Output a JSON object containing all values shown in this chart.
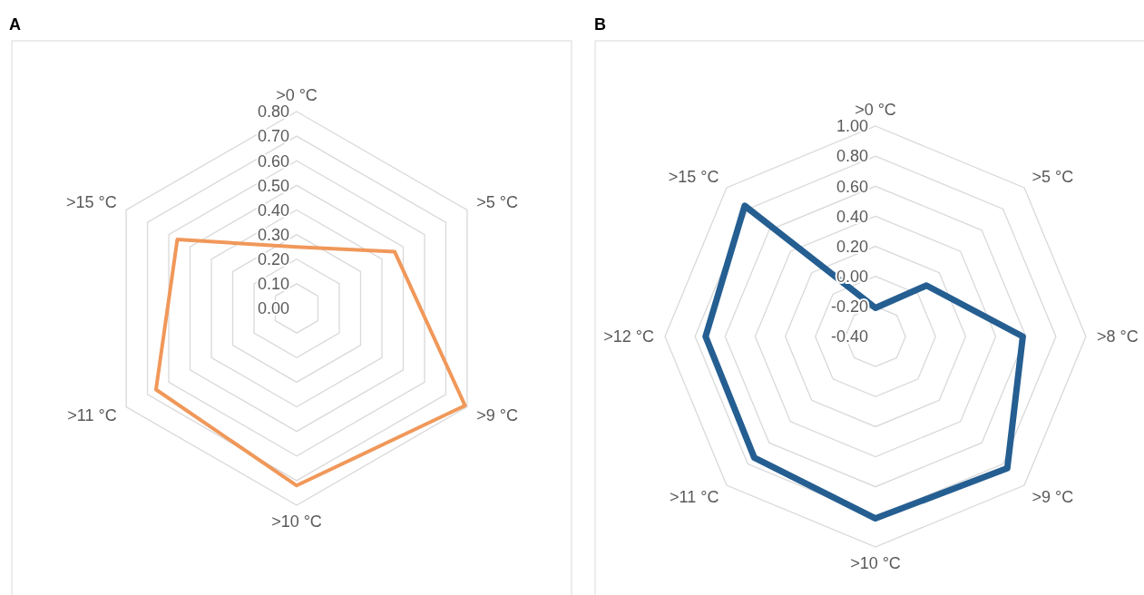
{
  "chart_data": [
    {
      "type": "radar",
      "title": "A",
      "categories": [
        ">0 °C",
        ">5 °C",
        ">9 °C",
        ">10 °C",
        ">11 °C",
        ">15 °C"
      ],
      "series": [
        {
          "color": "#f0985a",
          "values": [
            0.25,
            0.46,
            0.79,
            0.72,
            0.66,
            0.56
          ]
        }
      ],
      "ylim": [
        0,
        0.8
      ],
      "yticks": [
        {
          "value": 0,
          "label": "0.00"
        },
        {
          "value": 0.1,
          "label": "0.10"
        },
        {
          "value": 0.2,
          "label": "0.20"
        },
        {
          "value": 0.3,
          "label": "0.30"
        },
        {
          "value": 0.4,
          "label": "0.40"
        },
        {
          "value": 0.5,
          "label": "0.50"
        },
        {
          "value": 0.6,
          "label": "0.60"
        },
        {
          "value": 0.7,
          "label": "0.70"
        },
        {
          "value": 0.8,
          "label": "0.80"
        }
      ],
      "grid": true
    },
    {
      "type": "radar",
      "title": "B",
      "categories": [
        ">0 °C",
        ">5 °C",
        ">8 °C",
        ">9 °C",
        ">10 °C",
        ">11 °C",
        ">12 °C",
        ">15 °C"
      ],
      "series": [
        {
          "color": "#255e91",
          "values": [
            -0.21,
            0.08,
            0.58,
            0.84,
            0.81,
            0.74,
            0.73,
            0.83
          ]
        }
      ],
      "ylim": [
        -0.4,
        1
      ],
      "yticks": [
        {
          "value": -0.4,
          "label": "-0.40"
        },
        {
          "value": -0.2,
          "label": "-0.20"
        },
        {
          "value": 0,
          "label": "0.00"
        },
        {
          "value": 0.2,
          "label": "0.20"
        },
        {
          "value": 0.4,
          "label": "0.40"
        },
        {
          "value": 0.6,
          "label": "0.60"
        },
        {
          "value": 0.8,
          "label": "0.80"
        },
        {
          "value": 1,
          "label": "1.00"
        }
      ],
      "grid": true
    }
  ]
}
